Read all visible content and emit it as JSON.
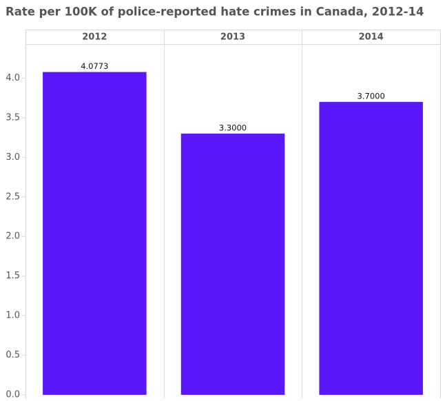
{
  "chart_data": {
    "type": "bar",
    "title": "Rate per 100K of police-reported hate crimes in Canada, 2012-14",
    "categories": [
      "2012",
      "2013",
      "2014"
    ],
    "values": [
      4.0773,
      3.3,
      3.7
    ],
    "value_labels": [
      "4.0773",
      "3.3000",
      "3.7000"
    ],
    "color": "#5b17fb",
    "ylim": [
      0,
      4.43
    ],
    "yticks": [
      {
        "value": 0,
        "label": "0.0"
      },
      0.5,
      {
        "value": 1,
        "label": "1.0"
      },
      1.5,
      {
        "value": 2,
        "label": "2.0"
      },
      2.5,
      {
        "value": 3,
        "label": "3.0"
      },
      3.5,
      {
        "value": 4,
        "label": "4.0"
      }
    ],
    "grid": false
  }
}
